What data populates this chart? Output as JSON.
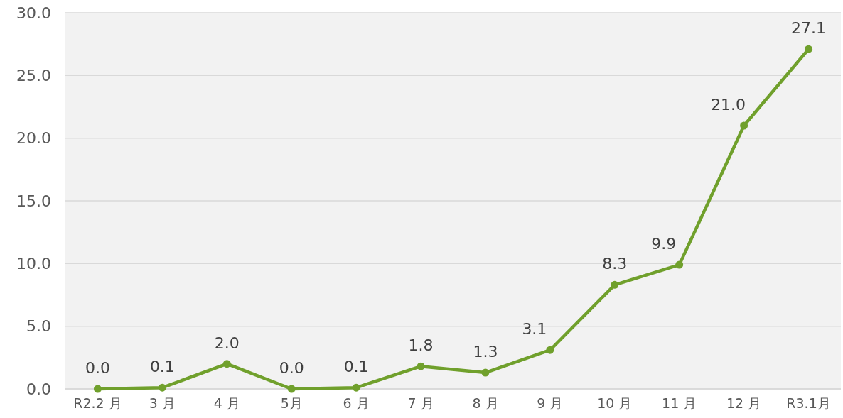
{
  "chart_data": {
    "type": "line",
    "categories": [
      "R2.2 月",
      "3 月",
      "4 月",
      "5月",
      "6 月",
      "7 月",
      "8 月",
      "9 月",
      "10 月",
      "11 月",
      "12 月",
      "R3.1月"
    ],
    "series": [
      {
        "color": "#70a02c",
        "values": [
          0.0,
          0.1,
          2.0,
          0.0,
          0.1,
          1.8,
          1.3,
          3.1,
          8.3,
          9.9,
          21.0,
          27.1
        ],
        "value_labels": [
          "0.0",
          "0.1",
          "2.0",
          "0.0",
          "0.1",
          "1.8",
          "1.3",
          "3.1",
          "8.3",
          "9.9",
          "21.0",
          "27.1"
        ]
      }
    ],
    "ylim": [
      0,
      30
    ],
    "yticks": [
      {
        "value": 0,
        "label": "0.0"
      },
      {
        "value": 5,
        "label": "5.0"
      },
      {
        "value": 10,
        "label": "10.0"
      },
      {
        "value": 15,
        "label": "15.0"
      },
      {
        "value": 20,
        "label": "20.0"
      },
      {
        "value": 25,
        "label": "25.0"
      },
      {
        "value": 30,
        "label": "30.0"
      }
    ],
    "grid": "y",
    "marker": "circle",
    "line_style": "solid"
  }
}
